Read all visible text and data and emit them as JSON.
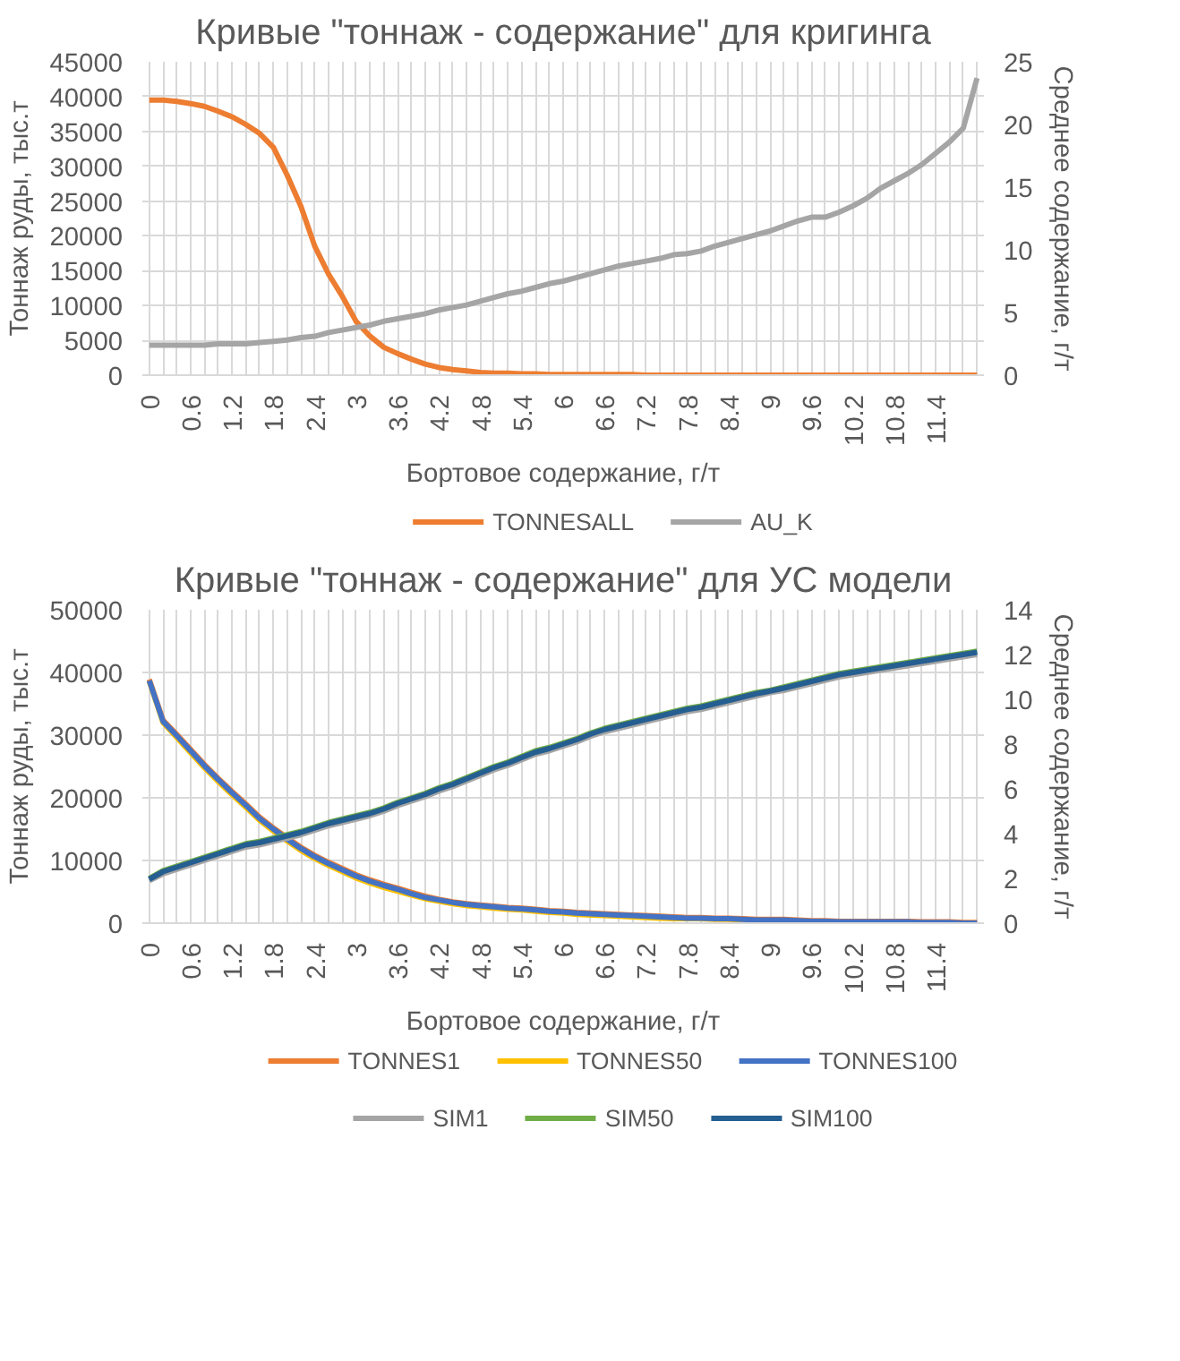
{
  "chart_data": [
    {
      "type": "line",
      "title": "Кривые \"тоннаж - содержание\" для кригинга",
      "xlabel": "Бортовое содержание, г/т",
      "ylabel": "Тоннаж руды, тыс.т",
      "y2label": "Среднее содержание, г/т",
      "categories": [
        "0",
        null,
        null,
        "0.6",
        null,
        null,
        "1.2",
        null,
        null,
        "1.8",
        null,
        null,
        "2.4",
        null,
        null,
        "3",
        null,
        null,
        "3.6",
        null,
        null,
        "4.2",
        null,
        null,
        "4.8",
        null,
        null,
        "5.4",
        null,
        null,
        "6",
        null,
        null,
        "6.6",
        null,
        null,
        "7.2",
        null,
        null,
        "7.8",
        null,
        null,
        "8.4",
        null,
        null,
        "9",
        null,
        null,
        "9.6",
        null,
        null,
        "10.2",
        null,
        null,
        "10.8",
        null,
        null,
        "11.4",
        null,
        null,
        null
      ],
      "ylim": [
        0,
        45000
      ],
      "yticks": [
        0,
        5000,
        10000,
        15000,
        20000,
        25000,
        30000,
        35000,
        40000,
        45000
      ],
      "y2lim": [
        0,
        25
      ],
      "y2ticks": [
        0,
        5,
        10,
        15,
        20,
        25
      ],
      "grid": true,
      "legend": "bottom",
      "series": [
        {
          "name": "TONNESALL",
          "color": "#ed7d31",
          "values": [
            39500,
            39500,
            39300,
            39000,
            38600,
            37900,
            37100,
            36000,
            34700,
            32700,
            28700,
            24200,
            18500,
            14500,
            11300,
            7700,
            5600,
            4000,
            3100,
            2300,
            1600,
            1100,
            800,
            600,
            400,
            300,
            300,
            200,
            200,
            100,
            100,
            100,
            100,
            100,
            100,
            100,
            0,
            0,
            0,
            0,
            0,
            0,
            0,
            0,
            0,
            0,
            0,
            0,
            0,
            0,
            0,
            0,
            0,
            0,
            0,
            0,
            0,
            0,
            0,
            0,
            0
          ]
        },
        {
          "name": "AU_K",
          "color": "#a5a5a5",
          "axis": "y2",
          "values": [
            2.4,
            2.4,
            2.4,
            2.4,
            2.4,
            2.5,
            2.5,
            2.5,
            2.6,
            2.7,
            2.8,
            3.0,
            3.1,
            3.4,
            3.6,
            3.8,
            4.0,
            4.3,
            4.5,
            4.7,
            4.9,
            5.2,
            5.4,
            5.6,
            5.9,
            6.2,
            6.5,
            6.7,
            7.0,
            7.3,
            7.5,
            7.8,
            8.1,
            8.4,
            8.7,
            8.9,
            9.1,
            9.3,
            9.6,
            9.7,
            9.9,
            10.3,
            10.6,
            10.9,
            11.2,
            11.5,
            11.9,
            12.3,
            12.6,
            12.6,
            13.0,
            13.5,
            14.1,
            14.9,
            15.5,
            16.1,
            16.8,
            17.7,
            18.6,
            19.7,
            23.7
          ]
        }
      ]
    },
    {
      "type": "line",
      "title": "Кривые \"тоннаж - содержание\" для УС модели",
      "xlabel": "Бортовое содержание, г/т",
      "ylabel": "Тоннаж руды, тыс.т",
      "y2label": "Среднее содержание, г/т",
      "categories": [
        "0",
        null,
        null,
        "0.6",
        null,
        null,
        "1.2",
        null,
        null,
        "1.8",
        null,
        null,
        "2.4",
        null,
        null,
        "3",
        null,
        null,
        "3.6",
        null,
        null,
        "4.2",
        null,
        null,
        "4.8",
        null,
        null,
        "5.4",
        null,
        null,
        "6",
        null,
        null,
        "6.6",
        null,
        null,
        "7.2",
        null,
        null,
        "7.8",
        null,
        null,
        "8.4",
        null,
        null,
        "9",
        null,
        null,
        "9.6",
        null,
        null,
        "10.2",
        null,
        null,
        "10.8",
        null,
        null,
        "11.4",
        null,
        null,
        null
      ],
      "ylim": [
        0,
        50000
      ],
      "yticks": [
        0,
        10000,
        20000,
        30000,
        40000,
        50000
      ],
      "y2lim": [
        0,
        14
      ],
      "y2ticks": [
        0,
        2,
        4,
        6,
        8,
        10,
        12,
        14
      ],
      "grid": true,
      "legend": "bottom",
      "series": [
        {
          "name": "TONNES1",
          "color": "#ed7d31",
          "values": [
            38900,
            32400,
            30100,
            27700,
            25300,
            23100,
            21000,
            19000,
            16900,
            15200,
            13600,
            12100,
            10800,
            9700,
            8700,
            7700,
            6900,
            6200,
            5600,
            4900,
            4300,
            3800,
            3400,
            3100,
            2900,
            2700,
            2500,
            2400,
            2200,
            2000,
            1900,
            1700,
            1600,
            1500,
            1400,
            1300,
            1200,
            1100,
            1000,
            900,
            900,
            800,
            800,
            700,
            600,
            600,
            600,
            500,
            400,
            400,
            300,
            300,
            300,
            300,
            300,
            300,
            200,
            200,
            200,
            100,
            100
          ]
        },
        {
          "name": "TONNES50",
          "color": "#ffc000",
          "values": [
            38600,
            32000,
            29600,
            27200,
            24800,
            22600,
            20500,
            18500,
            16400,
            14700,
            13100,
            11600,
            10300,
            9200,
            8200,
            7200,
            6400,
            5700,
            5100,
            4500,
            3900,
            3500,
            3100,
            2800,
            2600,
            2400,
            2200,
            2100,
            1900,
            1700,
            1600,
            1400,
            1300,
            1200,
            1100,
            1000,
            900,
            800,
            700,
            700,
            700,
            600,
            600,
            500,
            400,
            null,
            null,
            null,
            null,
            null,
            null,
            null,
            null,
            null,
            null,
            null,
            null,
            null,
            null,
            null,
            null
          ]
        },
        {
          "name": "TONNES100",
          "color": "#4472c4",
          "values": [
            38700,
            32200,
            29900,
            27500,
            25100,
            22900,
            20800,
            18800,
            16700,
            15000,
            13400,
            11900,
            10600,
            9500,
            8500,
            7500,
            6700,
            6000,
            5400,
            4700,
            4100,
            3700,
            3300,
            3000,
            2800,
            2600,
            2400,
            2300,
            2100,
            1900,
            1800,
            1600,
            1500,
            1400,
            1300,
            1200,
            1100,
            1000,
            900,
            800,
            800,
            700,
            700,
            600,
            500,
            500,
            500,
            400,
            300,
            300,
            200,
            200,
            200,
            200,
            200,
            200,
            100,
            100,
            100,
            0,
            0
          ]
        },
        {
          "name": "SIM1",
          "color": "#a5a5a5",
          "axis": "y2",
          "values": [
            1.9,
            2.2,
            2.4,
            2.6,
            2.8,
            3.0,
            3.2,
            3.4,
            3.5,
            3.65,
            3.8,
            3.95,
            4.15,
            4.35,
            4.5,
            4.65,
            4.8,
            5.0,
            5.25,
            5.45,
            5.65,
            5.9,
            6.1,
            6.35,
            6.6,
            6.85,
            7.05,
            7.3,
            7.55,
            7.7,
            7.9,
            8.1,
            8.35,
            8.55,
            8.7,
            8.85,
            9.0,
            9.15,
            9.3,
            9.45,
            9.55,
            9.7,
            9.85,
            10.0,
            10.15,
            10.3,
            10.4,
            10.55,
            10.7,
            10.85,
            11.0,
            11.1,
            11.2,
            11.3,
            11.4,
            11.5,
            11.6,
            11.7,
            11.8,
            11.9,
            12.0
          ]
        },
        {
          "name": "SIM50",
          "color": "#70ad47",
          "axis": "y2",
          "values": [
            2.0,
            2.35,
            2.55,
            2.75,
            2.95,
            3.15,
            3.35,
            3.55,
            3.65,
            3.8,
            3.95,
            4.1,
            4.3,
            4.5,
            4.65,
            4.8,
            4.95,
            5.15,
            5.4,
            5.6,
            5.8,
            6.05,
            6.25,
            6.5,
            6.75,
            7.0,
            7.2,
            7.45,
            7.7,
            7.85,
            8.05,
            8.25,
            8.5,
            8.7,
            8.85,
            9.0,
            9.15,
            9.3,
            9.45,
            9.6,
            9.7,
            9.85,
            10.0,
            10.15,
            10.3,
            10.4,
            10.55,
            10.7,
            10.85,
            11.0,
            11.15,
            11.25,
            11.35,
            11.45,
            11.55,
            11.65,
            11.75,
            11.85,
            11.95,
            12.05,
            12.15
          ]
        },
        {
          "name": "SIM100",
          "color": "#255e91",
          "axis": "y2",
          "values": [
            1.96,
            2.3,
            2.5,
            2.7,
            2.9,
            3.1,
            3.3,
            3.5,
            3.6,
            3.75,
            3.9,
            4.05,
            4.25,
            4.45,
            4.6,
            4.75,
            4.9,
            5.1,
            5.35,
            5.55,
            5.75,
            6.0,
            6.2,
            6.45,
            6.7,
            6.95,
            7.15,
            7.4,
            7.64,
            7.8,
            8.0,
            8.2,
            8.45,
            8.65,
            8.8,
            8.95,
            9.1,
            9.25,
            9.4,
            9.55,
            9.65,
            9.8,
            9.95,
            10.1,
            10.25,
            10.37,
            10.5,
            10.65,
            10.8,
            10.95,
            11.1,
            11.2,
            11.3,
            11.4,
            11.5,
            11.6,
            11.7,
            11.8,
            11.9,
            12.0,
            12.1
          ]
        }
      ]
    }
  ]
}
